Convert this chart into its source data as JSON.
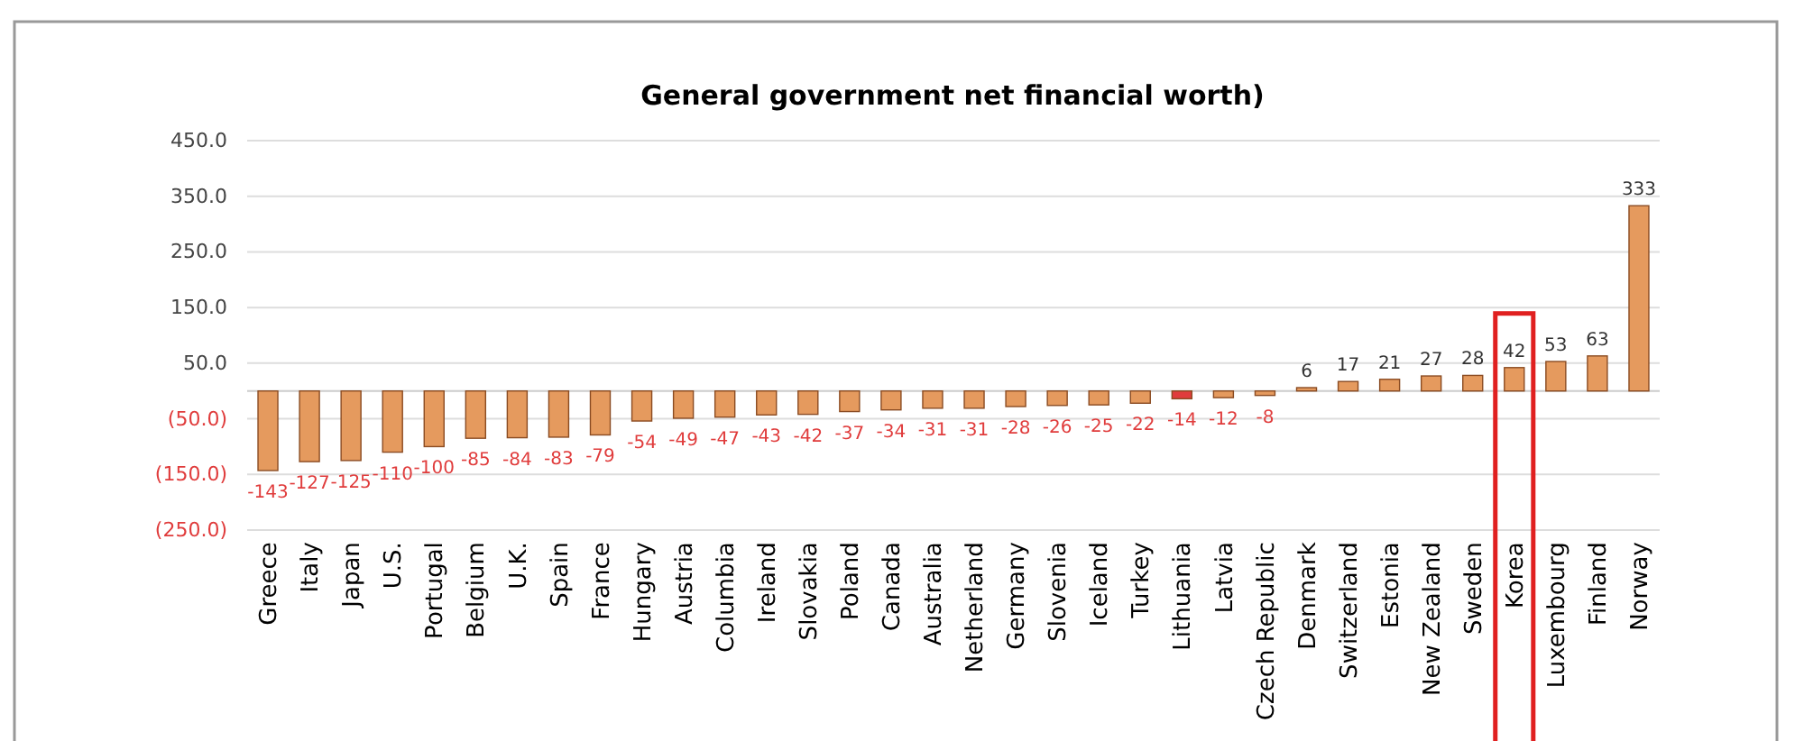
{
  "chart_data": {
    "type": "bar",
    "title": "General government net financial worth)",
    "categories": [
      "Greece",
      "Italy",
      "Japan",
      "U.S.",
      "Portugal",
      "Belgium",
      "U.K.",
      "Spain",
      "France",
      "Hungary",
      "Austria",
      "Columbia",
      "Ireland",
      "Slovakia",
      "Poland",
      "Canada",
      "Australia",
      "Netherland",
      "Germany",
      "Slovenia",
      "Iceland",
      "Turkey",
      "Lithuania",
      "Latvia",
      "Czech Republic",
      "Denmark",
      "Switzerland",
      "Estonia",
      "New Zealand",
      "Sweden",
      "Korea",
      "Luxembourg",
      "Finland",
      "Norway"
    ],
    "values": [
      -143,
      -127,
      -125,
      -110,
      -100,
      -85,
      -84,
      -83,
      -79,
      -54,
      -49,
      -47,
      -43,
      -42,
      -37,
      -34,
      -31,
      -31,
      -28,
      -26,
      -25,
      -22,
      -14,
      -12,
      -8,
      6,
      17,
      21,
      27,
      28,
      42,
      53,
      63,
      333
    ],
    "colors": [
      "#e59a5e",
      "#e59a5e",
      "#e59a5e",
      "#e59a5e",
      "#e59a5e",
      "#e59a5e",
      "#e59a5e",
      "#e59a5e",
      "#e59a5e",
      "#e59a5e",
      "#e59a5e",
      "#e59a5e",
      "#e59a5e",
      "#e59a5e",
      "#e59a5e",
      "#e59a5e",
      "#e59a5e",
      "#e59a5e",
      "#e59a5e",
      "#e59a5e",
      "#e59a5e",
      "#e59a5e",
      "#e03c3c",
      "#e59a5e",
      "#e59a5e",
      "#e59a5e",
      "#e59a5e",
      "#e59a5e",
      "#e59a5e",
      "#e59a5e",
      "#e59a5e",
      "#e59a5e",
      "#e59a5e",
      "#e59a5e"
    ],
    "ylim": [
      -250,
      450
    ],
    "yticks": [
      {
        "value": -250,
        "label": "(250.0)"
      },
      {
        "value": -150,
        "label": "(150.0)"
      },
      {
        "value": -50,
        "label": "(50.0)"
      },
      {
        "value": 50,
        "label": "50.0"
      },
      {
        "value": 150,
        "label": "150.0"
      },
      {
        "value": 250,
        "label": "250.0"
      },
      {
        "value": 350,
        "label": "350.0"
      },
      {
        "value": 450,
        "label": "450.0"
      }
    ],
    "grid": true,
    "data_labels": true
  }
}
